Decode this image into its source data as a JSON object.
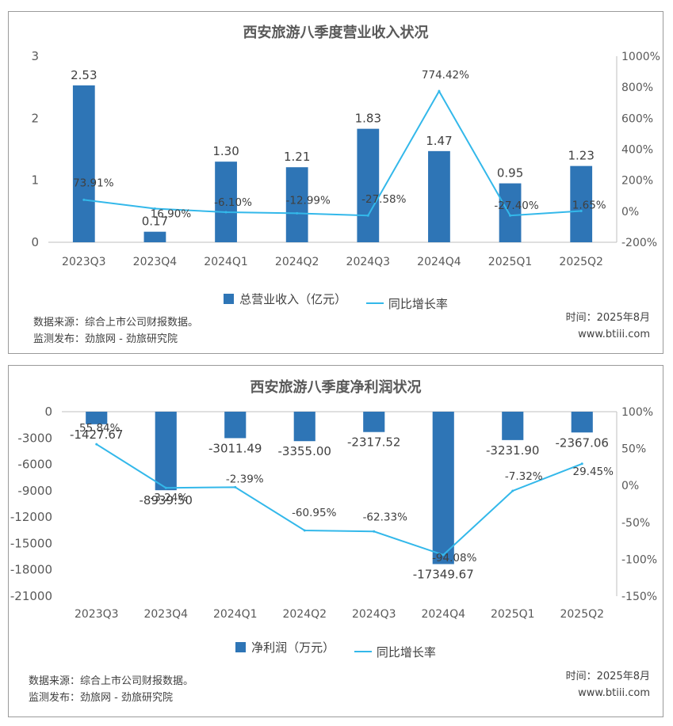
{
  "colors": {
    "bar": "#2e75b6",
    "line": "#33b8ea",
    "axis": "#bfbfbf",
    "text": "#595959"
  },
  "chart_data": [
    {
      "type": "bar",
      "title": "西安旅游八季度营业收入状况",
      "categories": [
        "2023Q3",
        "2023Q4",
        "2024Q1",
        "2024Q2",
        "2024Q3",
        "2024Q4",
        "2025Q1",
        "2025Q2"
      ],
      "series": [
        {
          "name": "总营业收入（亿元）",
          "type": "bar",
          "axis": "left",
          "values": [
            2.53,
            0.17,
            1.3,
            1.21,
            1.83,
            1.47,
            0.95,
            1.23
          ],
          "labels": [
            "2.53",
            "0.17",
            "1.30",
            "1.21",
            "1.83",
            "1.47",
            "0.95",
            "1.23"
          ]
        },
        {
          "name": "同比增长率",
          "type": "line",
          "axis": "right",
          "values": [
            73.91,
            16.9,
            -6.1,
            -12.99,
            -27.58,
            774.42,
            -27.4,
            1.65
          ],
          "labels": [
            "73.91%",
            "16.90%",
            "-6.10%",
            "-12.99%",
            "-27.58%",
            "774.42%",
            "-27.40%",
            "1.65%"
          ]
        }
      ],
      "left_axis": {
        "min": 0,
        "max": 3,
        "ticks": [
          "0",
          "1",
          "2",
          "3"
        ]
      },
      "right_axis": {
        "min": -200,
        "max": 1000,
        "ticks": [
          "-200%",
          "0%",
          "200%",
          "400%",
          "600%",
          "800%",
          "1000%"
        ]
      },
      "legend_position": "bottom",
      "footer": {
        "source": "数据来源：综合上市公司财报数据。",
        "publisher": "监测发布：劲旅网 - 劲旅研究院",
        "time": "时间：2025年8月",
        "site": "www.btiii.com"
      }
    },
    {
      "type": "bar",
      "title": "西安旅游八季度净利润状况",
      "categories": [
        "2023Q3",
        "2023Q4",
        "2024Q1",
        "2024Q2",
        "2024Q3",
        "2024Q4",
        "2025Q1",
        "2025Q2"
      ],
      "series": [
        {
          "name": "净利润（万元）",
          "type": "bar",
          "axis": "left",
          "values": [
            -1427.67,
            -8939.5,
            -3011.49,
            -3355.0,
            -2317.52,
            -17349.67,
            -3231.9,
            -2367.06
          ],
          "labels": [
            "-1427.67",
            "-8939.50",
            "-3011.49",
            "-3355.00",
            "-2317.52",
            "-17349.67",
            "-3231.90",
            "-2367.06"
          ]
        },
        {
          "name": "同比增长率",
          "type": "line",
          "axis": "right",
          "values": [
            55.84,
            -3.24,
            -2.39,
            -60.95,
            -62.33,
            -94.08,
            -7.32,
            29.45
          ],
          "labels": [
            "55.84%",
            "-3.24%",
            "-2.39%",
            "-60.95%",
            "-62.33%",
            "-94.08%",
            "-7.32%",
            "29.45%"
          ]
        }
      ],
      "left_axis": {
        "min": -21000,
        "max": 0,
        "ticks": [
          "0",
          "-3000",
          "-6000",
          "-9000",
          "-12000",
          "-15000",
          "-18000",
          "-21000"
        ]
      },
      "right_axis": {
        "min": -150,
        "max": 100,
        "ticks": [
          "100%",
          "50%",
          "0%",
          "-50%",
          "-100%",
          "-150%"
        ]
      },
      "legend_position": "bottom",
      "footer": {
        "source": "数据来源：综合上市公司财报数据。",
        "publisher": "监测发布：劲旅网 - 劲旅研究院",
        "time": "时间：2025年8月",
        "site": "www.btiii.com"
      }
    }
  ]
}
